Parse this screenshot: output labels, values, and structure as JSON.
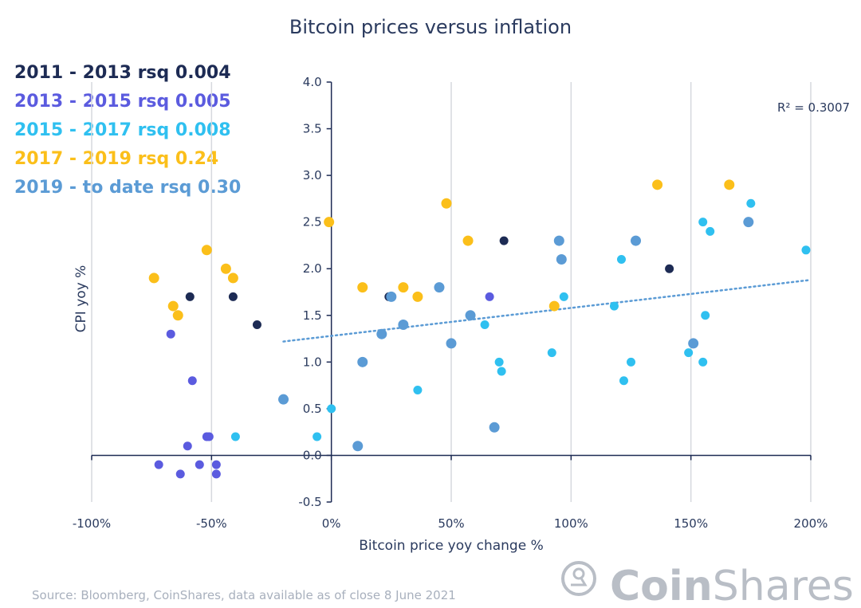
{
  "chart_data": {
    "type": "scatter",
    "title": "Bitcoin prices versus inflation",
    "xlabel": "Bitcoin price yoy change %",
    "ylabel": "CPI yoy %",
    "xlim": [
      -100,
      200
    ],
    "ylim": [
      -0.5,
      4.0
    ],
    "x_ticks": [
      -100,
      -50,
      0,
      50,
      100,
      150,
      200
    ],
    "x_tick_labels": [
      "-100%",
      "-50%",
      "0%",
      "50%",
      "100%",
      "150%",
      "200%"
    ],
    "y_ticks": [
      -0.5,
      0.0,
      0.5,
      1.0,
      1.5,
      2.0,
      2.5,
      3.0,
      3.5,
      4.0
    ],
    "y_tick_labels": [
      "-0.5",
      "0.0",
      "0.5",
      "1.0",
      "1.5",
      "2.0",
      "2.5",
      "3.0",
      "3.5",
      "4.0"
    ],
    "grid": "vertical",
    "legend_position": "top-left",
    "annotation": "R² = 0.3007",
    "trendline": {
      "series": "2019 - to date",
      "x": [
        -20,
        200
      ],
      "y": [
        1.22,
        1.88
      ],
      "style": "dotted",
      "color": "#5b9bd5"
    },
    "series": [
      {
        "name": "2011 - 2013",
        "label": "2011 - 2013 rsq 0.004",
        "color": "#1d2b54",
        "points": [
          [
            -59,
            1.7
          ],
          [
            -41,
            1.7
          ],
          [
            -31,
            1.4
          ],
          [
            24,
            1.7
          ],
          [
            72,
            2.3
          ],
          [
            141,
            2.0
          ]
        ]
      },
      {
        "name": "2013 - 2015",
        "label": "2013 - 2015 rsq 0.005",
        "color": "#5b5bdf",
        "points": [
          [
            -67,
            1.3
          ],
          [
            -58,
            0.8
          ],
          [
            -52,
            0.2
          ],
          [
            -51,
            0.2
          ],
          [
            -60,
            0.1
          ],
          [
            -72,
            -0.1
          ],
          [
            -55,
            -0.1
          ],
          [
            -48,
            -0.1
          ],
          [
            -63,
            -0.2
          ],
          [
            -48,
            -0.2
          ],
          [
            66,
            1.7
          ]
        ]
      },
      {
        "name": "2015 - 2017",
        "label": "2015 - 2017 rsq 0.008",
        "color": "#2fc0f0",
        "points": [
          [
            -40,
            0.2
          ],
          [
            -6,
            0.2
          ],
          [
            0,
            0.5
          ],
          [
            36,
            0.7
          ],
          [
            64,
            1.4
          ],
          [
            70,
            1.0
          ],
          [
            71,
            0.9
          ],
          [
            92,
            1.1
          ],
          [
            97,
            1.7
          ],
          [
            118,
            1.6
          ],
          [
            121,
            2.1
          ],
          [
            122,
            0.8
          ],
          [
            125,
            1.0
          ],
          [
            149,
            1.1
          ],
          [
            155,
            1.0
          ],
          [
            155,
            2.5
          ],
          [
            156,
            1.5
          ],
          [
            158,
            2.4
          ],
          [
            175,
            2.7
          ],
          [
            198,
            2.2
          ]
        ]
      },
      {
        "name": "2017 - 2019",
        "label": "2017 - 2019 rsq 0.24",
        "color": "#fbbf1a",
        "points": [
          [
            -74,
            1.9
          ],
          [
            -66,
            1.6
          ],
          [
            -64,
            1.5
          ],
          [
            -52,
            2.2
          ],
          [
            -44,
            2.0
          ],
          [
            -41,
            1.9
          ],
          [
            -1,
            2.5
          ],
          [
            13,
            1.8
          ],
          [
            30,
            1.8
          ],
          [
            36,
            1.7
          ],
          [
            48,
            2.7
          ],
          [
            57,
            2.3
          ],
          [
            93,
            1.6
          ],
          [
            136,
            2.9
          ],
          [
            166,
            2.9
          ]
        ]
      },
      {
        "name": "2019 - to date",
        "label": "2019 - to date rsq 0.30",
        "color": "#5b9bd5",
        "points": [
          [
            -20,
            0.6
          ],
          [
            11,
            0.1
          ],
          [
            13,
            1.0
          ],
          [
            21,
            1.3
          ],
          [
            25,
            1.7
          ],
          [
            30,
            1.4
          ],
          [
            45,
            1.8
          ],
          [
            50,
            1.2
          ],
          [
            58,
            1.5
          ],
          [
            68,
            0.3
          ],
          [
            95,
            2.3
          ],
          [
            96,
            2.1
          ],
          [
            127,
            2.3
          ],
          [
            151,
            1.2
          ],
          [
            174,
            2.5
          ]
        ]
      }
    ]
  },
  "footer": {
    "source": "Source: Bloomberg, CoinShares, data available as of close 8 June 2021",
    "brand_bold": "Coin",
    "brand_light": "Shares",
    "logo_icon": "coinshares-logo-icon"
  }
}
